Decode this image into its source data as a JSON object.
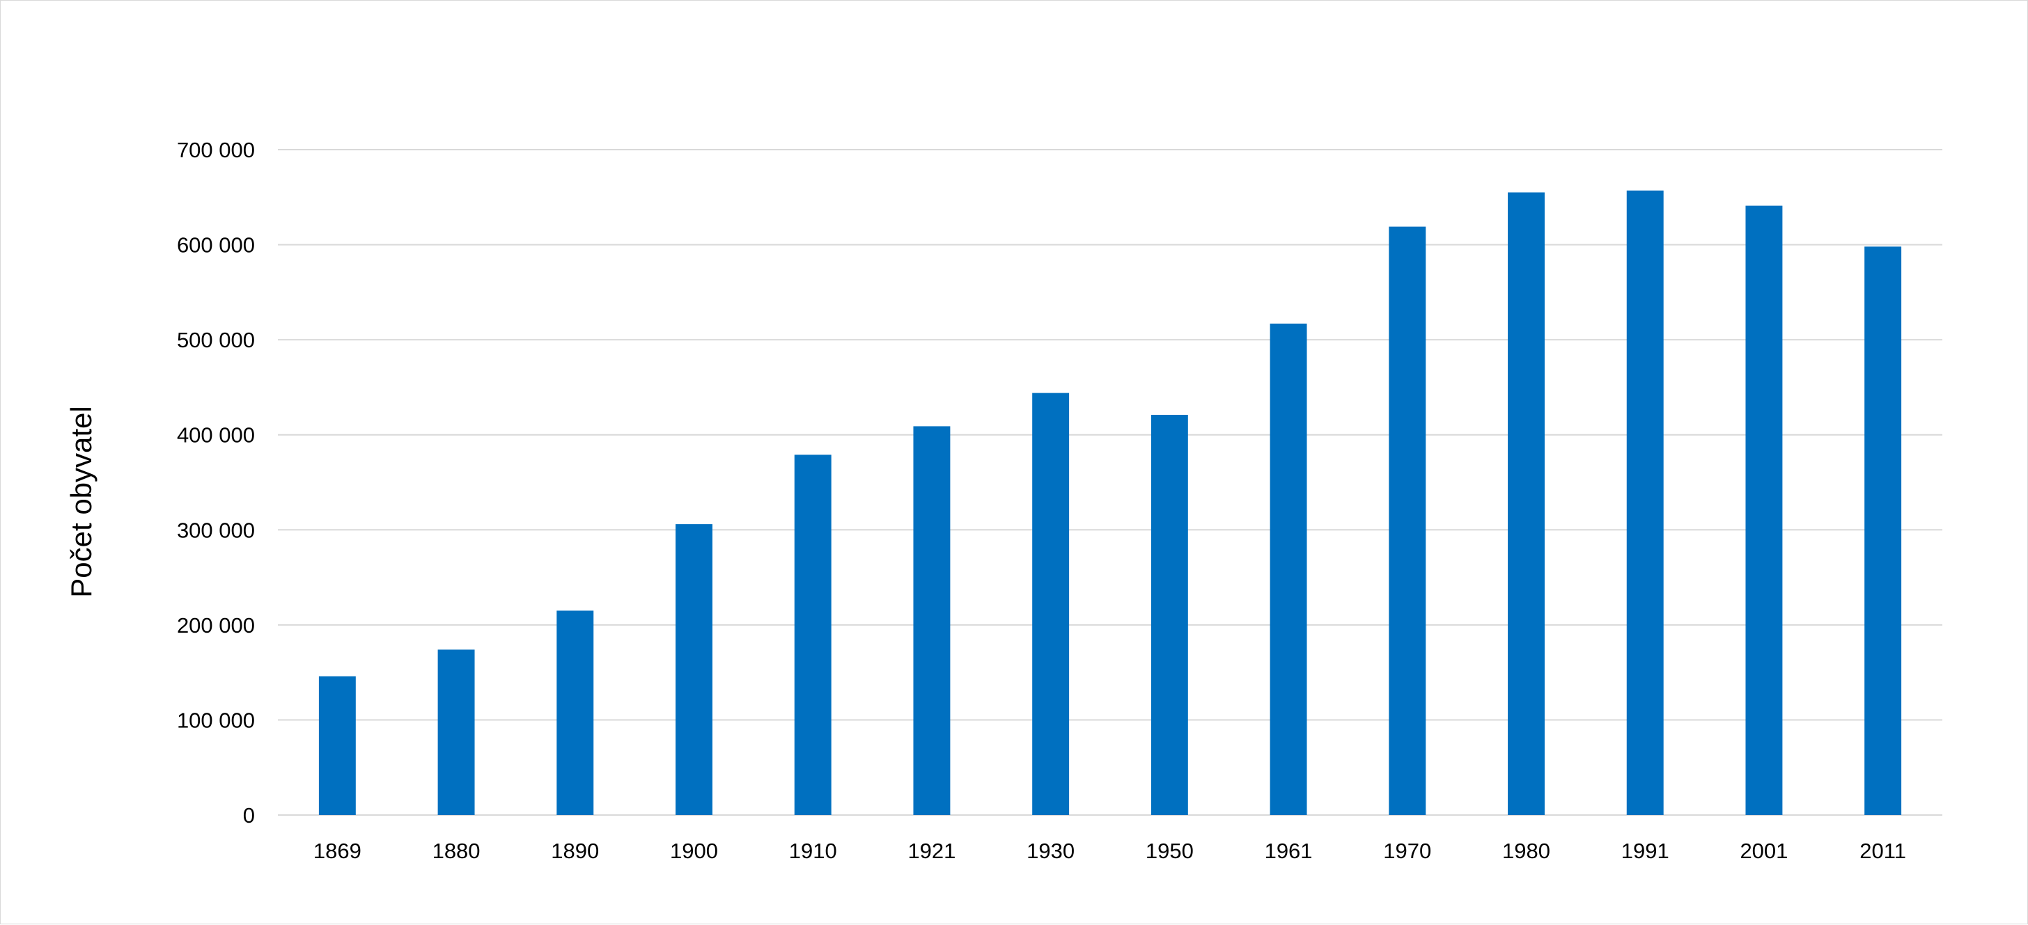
{
  "chart_data": {
    "type": "bar",
    "categories": [
      "1869",
      "1880",
      "1890",
      "1900",
      "1910",
      "1921",
      "1930",
      "1950",
      "1961",
      "1970",
      "1980",
      "1991",
      "2001",
      "2011"
    ],
    "series": [
      {
        "values": [
          146000,
          174000,
          215000,
          306000,
          379000,
          409000,
          444000,
          421000,
          517000,
          619000,
          655000,
          657000,
          641000,
          598000
        ],
        "color": "#0070C0"
      }
    ],
    "ylabel": "Počet obyvatel",
    "xlabel": "",
    "title": "",
    "ylim": [
      0,
      700000
    ],
    "yticks": [
      0,
      100000,
      200000,
      300000,
      400000,
      500000,
      600000,
      700000
    ],
    "ytick_labels": [
      "0",
      "100 000",
      "200 000",
      "300 000",
      "400 000",
      "500 000",
      "600 000",
      "700 000"
    ],
    "grid": true,
    "legend": "none",
    "gridline_color": "#d9d9d9"
  }
}
